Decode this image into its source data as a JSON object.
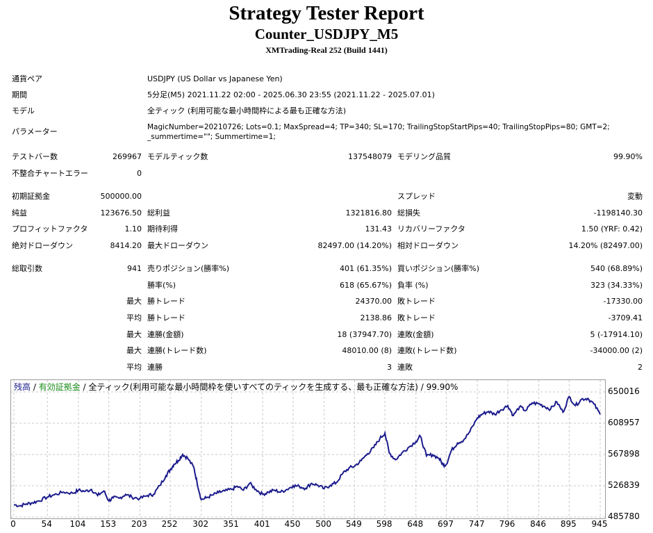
{
  "header": {
    "title": "Strategy Tester Report",
    "subtitle": "Counter_USDJPY_M5",
    "build": "XMTrading-Real 252 (Build 1441)"
  },
  "info": {
    "symbol_label": "通貨ペア",
    "symbol_value": "USDJPY (US Dollar vs Japanese Yen)",
    "period_label": "期間",
    "period_value": "5分足(M5) 2021.11.22 02:00 - 2025.06.30 23:55 (2021.11.22 - 2025.07.01)",
    "model_label": "モデル",
    "model_value": "全ティック (利用可能な最小時間枠による最も正確な方法)",
    "params_label": "パラメーター",
    "params_line1": "MagicNumber=20210726; Lots=0.1; MaxSpread=4; TP=340; SL=170; TrailingStopStartPips=40; TrailingStopPips=80; GMT=2;",
    "params_line2": "_summertime=\"\"; Summertime=1;"
  },
  "stats": {
    "bars_label": "テストバー数",
    "bars_value": "269967",
    "ticks_label": "モデルティック数",
    "ticks_value": "137548079",
    "quality_label": "モデリング品質",
    "quality_value": "99.90%",
    "mismatch_label": "不整合チャートエラー",
    "mismatch_value": "0",
    "deposit_label": "初期証拠金",
    "deposit_value": "500000.00",
    "spread_label": "スプレッド",
    "spread_value": "変動",
    "net_label": "純益",
    "net_value": "123676.50",
    "gross_profit_label": "総利益",
    "gross_profit_value": "1321816.80",
    "gross_loss_label": "総損失",
    "gross_loss_value": "-1198140.30",
    "pf_label": "プロフィットファクタ",
    "pf_value": "1.10",
    "expected_label": "期待利得",
    "expected_value": "131.43",
    "recovery_label": "リカバリーファクタ",
    "recovery_value": "1.50 (YRF: 0.42)",
    "abs_dd_label": "絶対ドローダウン",
    "abs_dd_value": "8414.20",
    "max_dd_label": "最大ドローダウン",
    "max_dd_value": "82497.00 (14.20%)",
    "rel_dd_label": "相対ドローダウン",
    "rel_dd_value": "14.20% (82497.00)",
    "trades_label": "総取引数",
    "trades_value": "941",
    "short_label": "売りポジション(勝率%)",
    "short_value": "401 (61.35%)",
    "long_label": "買いポジション(勝率%)",
    "long_value": "540 (68.89%)",
    "win_rate_label": "勝率(%)",
    "win_rate_value": "618 (65.67%)",
    "loss_rate_label": "負率 (%)",
    "loss_rate_value": "323 (34.33%)",
    "max_label": "最大",
    "avg_label": "平均",
    "win_trade_label": "勝トレード",
    "loss_trade_label": "敗トレード",
    "largest_win_value": "24370.00",
    "largest_loss_value": "-17330.00",
    "avg_win_value": "2138.86",
    "avg_loss_value": "-3709.41",
    "cons_win_amt_label": "連勝(金額)",
    "cons_win_amt_value": "18 (37947.70)",
    "cons_loss_amt_label": "連敗(金額)",
    "cons_loss_amt_value": "5 (-17914.10)",
    "cons_win_cnt_label": "連勝(トレード数)",
    "cons_win_cnt_value": "48010.00 (8)",
    "cons_loss_cnt_label": "連敗(トレード数)",
    "cons_loss_cnt_value": "-34000.00 (2)",
    "avg_cons_win_label": "連勝",
    "avg_cons_win_value": "3",
    "avg_cons_loss_label": "連敗",
    "avg_cons_loss_value": "2"
  },
  "chart_legend": {
    "balance": "残高",
    "sep1": " / ",
    "equity": "有効証拠金",
    "sep2": " / ",
    "rest": "全ティック(利用可能な最小時間枠を使いすべてのティックを生成する、最も正確な方法) / 99.90%"
  },
  "colors": {
    "balance_line": "#1a1a8c",
    "grid": "#c8c8c8",
    "equity_text": "#1a8c1a"
  },
  "chart_data": {
    "type": "line",
    "x_ticks": [
      "0",
      "54",
      "104",
      "153",
      "203",
      "252",
      "302",
      "351",
      "401",
      "450",
      "500",
      "549",
      "598",
      "648",
      "697",
      "747",
      "796",
      "846",
      "895",
      "945"
    ],
    "y_ticks": [
      "650016",
      "608957",
      "567898",
      "526839",
      "485780"
    ],
    "ylim": [
      485780,
      650016
    ],
    "xlim": [
      0,
      945
    ],
    "series": [
      {
        "x": [
          0,
          10,
          20,
          30,
          40,
          54,
          65,
          80,
          95,
          104,
          115,
          125,
          135,
          145,
          153,
          160,
          170,
          180,
          190,
          203,
          215,
          225,
          235,
          245,
          252,
          258,
          265,
          272,
          280,
          290,
          295,
          302,
          310,
          320,
          330,
          340,
          351,
          360,
          370,
          380,
          390,
          401,
          410,
          420,
          430,
          440,
          450,
          460,
          470,
          480,
          490,
          500,
          510,
          520,
          530,
          540,
          549,
          560,
          570,
          580,
          590,
          598,
          605,
          615,
          625,
          635,
          648,
          655,
          665,
          675,
          685,
          692,
          697,
          705,
          715,
          725,
          735,
          747,
          755,
          765,
          775,
          785,
          796,
          805,
          815,
          825,
          835,
          846,
          855,
          865,
          875,
          885,
          895,
          905,
          915,
          925,
          935,
          945
        ],
        "values": [
          502000,
          500500,
          503000,
          504500,
          507000,
          512000,
          515000,
          518500,
          517000,
          521000,
          519500,
          522000,
          514000,
          520000,
          507000,
          511000,
          510500,
          515500,
          512000,
          510000,
          514000,
          515500,
          527000,
          540000,
          548000,
          555000,
          560000,
          568000,
          563000,
          551000,
          532000,
          508500,
          511000,
          514500,
          518000,
          520000,
          522000,
          526000,
          521000,
          530000,
          522000,
          515500,
          518500,
          521000,
          518500,
          522000,
          527000,
          526000,
          523500,
          530000,
          527500,
          523000,
          527500,
          531000,
          543000,
          550000,
          552500,
          560000,
          569000,
          577000,
          589000,
          596000,
          570000,
          561000,
          569500,
          576500,
          585000,
          592000,
          566000,
          567500,
          563000,
          554000,
          555000,
          573000,
          583000,
          587000,
          598000,
          616000,
          621000,
          624500,
          620500,
          626500,
          632000,
          619000,
          630500,
          625500,
          635500,
          634500,
          631000,
          627500,
          637000,
          623500,
          644000,
          632000,
          640500,
          641500,
          634000,
          620500
        ]
      }
    ]
  }
}
